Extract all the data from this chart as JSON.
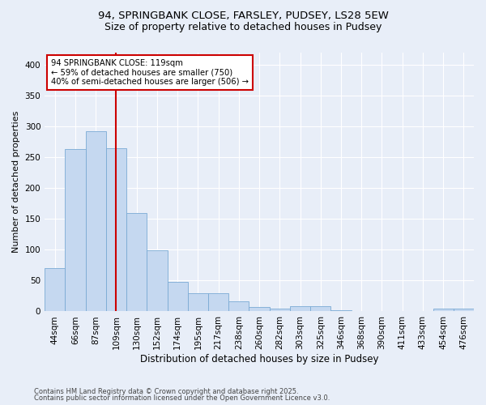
{
  "title_line1": "94, SPRINGBANK CLOSE, FARSLEY, PUDSEY, LS28 5EW",
  "title_line2": "Size of property relative to detached houses in Pudsey",
  "xlabel": "Distribution of detached houses by size in Pudsey",
  "ylabel": "Number of detached properties",
  "categories": [
    "44sqm",
    "66sqm",
    "87sqm",
    "109sqm",
    "130sqm",
    "152sqm",
    "174sqm",
    "195sqm",
    "217sqm",
    "238sqm",
    "260sqm",
    "282sqm",
    "303sqm",
    "325sqm",
    "346sqm",
    "368sqm",
    "390sqm",
    "411sqm",
    "433sqm",
    "454sqm",
    "476sqm"
  ],
  "values": [
    70,
    263,
    293,
    265,
    160,
    99,
    48,
    29,
    29,
    16,
    7,
    5,
    8,
    8,
    2,
    1,
    1,
    1,
    1,
    4,
    4
  ],
  "bar_color": "#c5d8f0",
  "bar_edge_color": "#7aaad4",
  "vline_x": 3,
  "vline_color": "#cc0000",
  "annotation_text": "94 SPRINGBANK CLOSE: 119sqm\n← 59% of detached houses are smaller (750)\n40% of semi-detached houses are larger (506) →",
  "annotation_box_color": "#ffffff",
  "annotation_box_edge": "#cc0000",
  "ylim": [
    0,
    420
  ],
  "yticks": [
    0,
    50,
    100,
    150,
    200,
    250,
    300,
    350,
    400
  ],
  "footnote1": "Contains HM Land Registry data © Crown copyright and database right 2025.",
  "footnote2": "Contains public sector information licensed under the Open Government Licence v3.0.",
  "bg_color": "#e8eef8",
  "plot_bg_color": "#e8eef8",
  "title_fontsize": 9.5,
  "subtitle_fontsize": 9,
  "xlabel_fontsize": 8.5,
  "ylabel_fontsize": 8,
  "tick_fontsize": 7.5,
  "footnote_fontsize": 6
}
